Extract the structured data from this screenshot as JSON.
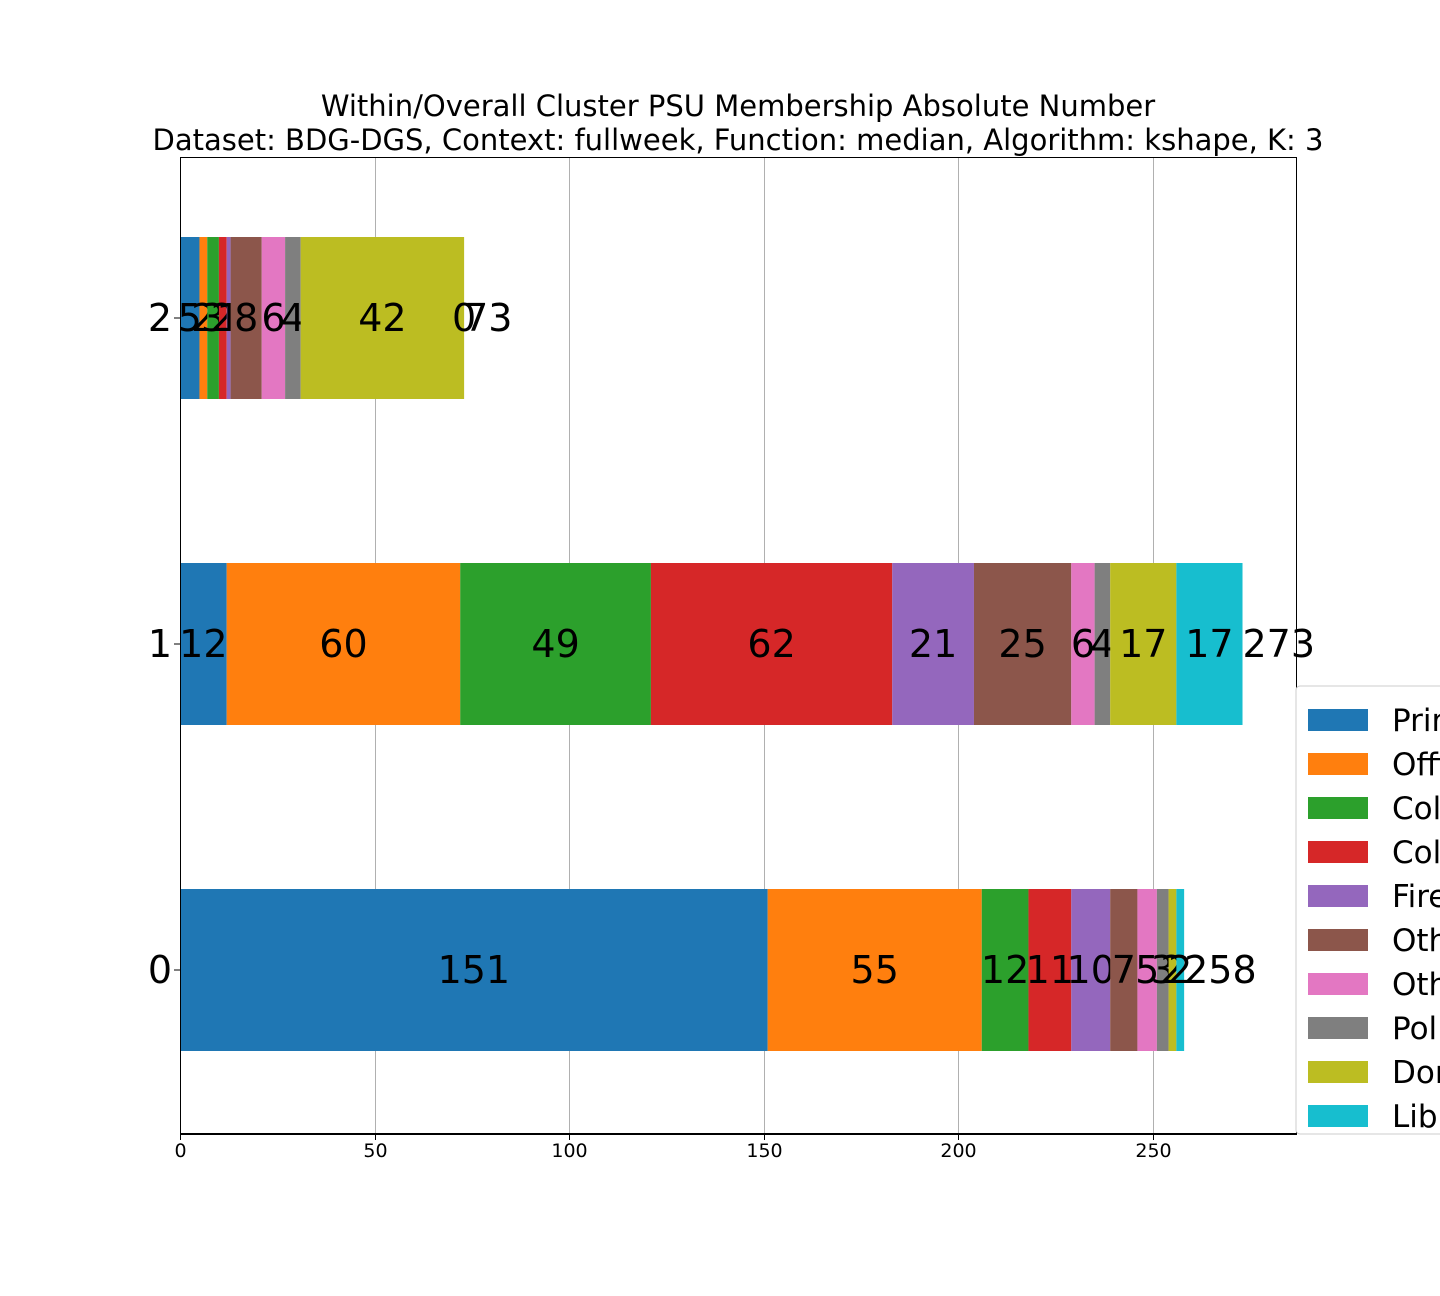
{
  "chart_data": {
    "type": "bar",
    "orientation": "horizontal",
    "stacked": true,
    "title": "Within/Overall Cluster PSU Membership Absolute Number",
    "subtitle": "Dataset: BDG-DGS, Context: fullweek, Function: median, Algorithm: kshape, K: 3",
    "xlabel": "",
    "ylabel": "",
    "xlim": [
      0,
      287
    ],
    "xticks": [
      0,
      50,
      100,
      150,
      200,
      250
    ],
    "grid": "x",
    "categories": [
      "0",
      "1",
      "2"
    ],
    "series": [
      {
        "name": "Prim",
        "color": "#1f77b4",
        "values": [
          151,
          12,
          5
        ]
      },
      {
        "name": "Offi",
        "color": "#ff7f0e",
        "values": [
          55,
          60,
          2
        ]
      },
      {
        "name": "Col",
        "color": "#2ca02c",
        "values": [
          12,
          49,
          3
        ]
      },
      {
        "name": "Col",
        "color": "#d62728",
        "values": [
          11,
          62,
          2
        ]
      },
      {
        "name": "Fire",
        "color": "#9467bd",
        "values": [
          10,
          21,
          1
        ]
      },
      {
        "name": "Oth",
        "color": "#8c564b",
        "values": [
          7,
          25,
          8
        ]
      },
      {
        "name": "Oth",
        "color": "#e377c2",
        "values": [
          5,
          6,
          6
        ]
      },
      {
        "name": "Poli",
        "color": "#7f7f7f",
        "values": [
          3,
          4,
          4
        ]
      },
      {
        "name": "Dor",
        "color": "#bcbd22",
        "values": [
          2,
          17,
          42
        ]
      },
      {
        "name": "Libr",
        "color": "#17becf",
        "values": [
          2,
          17,
          0
        ]
      }
    ],
    "totals": [
      258,
      273,
      73
    ],
    "legend_position": "right"
  }
}
